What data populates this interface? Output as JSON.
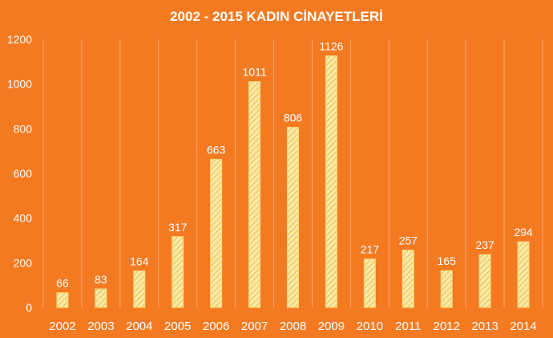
{
  "colors": {
    "background": "#f47a22",
    "bar_fill": "#fbe9a8",
    "bar_hatch": "#e2c04a",
    "bar_border": "#f5d97a",
    "gridline": "#f7a869",
    "text": "#ffffff"
  },
  "chart_data": {
    "type": "bar",
    "title": "2002 - 2015 KADIN CİNAYETLERİ",
    "xlabel": "",
    "ylabel": "",
    "categories": [
      "2002",
      "2003",
      "2004",
      "2005",
      "2006",
      "2007",
      "2008",
      "2009",
      "2010",
      "2011",
      "2012",
      "2013",
      "2014"
    ],
    "values": [
      66,
      83,
      164,
      317,
      663,
      1011,
      806,
      1126,
      217,
      257,
      165,
      237,
      294
    ],
    "ylim": [
      0,
      1200
    ],
    "yticks": [
      0,
      200,
      400,
      600,
      800,
      1000,
      1200
    ],
    "grid": "vertical",
    "legend": "none",
    "data_labels": true
  }
}
